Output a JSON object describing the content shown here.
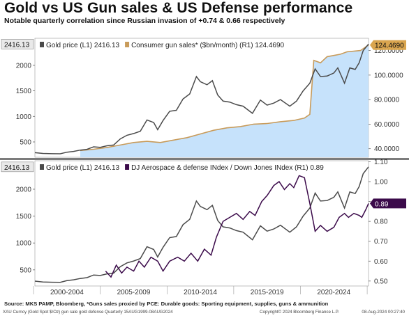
{
  "header": {
    "title": "Gold vs US Gun sales & US Defense performance",
    "subtitle": "Notable quarterly correlation since Russian invasion of +0.74 & 0.66 respectively"
  },
  "footer": {
    "source": "Source: MKS PAMP, Bloomberg, *Guns sales proxied by PCE: Durable goods: Sporting equipment, supplies, guns & ammunition",
    "left": "XAU Curncy (Gold Spot   $/Oz) gun sale gold defense  Quarterly 15AUG1999-08AUG2024",
    "middle": "Copyright© 2024 Bloomberg Finance L.P.",
    "right": "08-Aug-2024 00:27:40"
  },
  "colors": {
    "gold_line": "#4a4a4a",
    "gun_fill": "#c6e2fb",
    "gun_line": "#c89b5a",
    "defense_line": "#3b0a4a",
    "divider": "#333333"
  },
  "chart_data": [
    {
      "type": "line",
      "panel": "top",
      "x_axis": "year",
      "xlim": [
        1999.6,
        2024.6
      ],
      "y_left_ticks": [
        500,
        1000,
        1500,
        2000
      ],
      "y_left_lim": [
        200,
        2530
      ],
      "y_right_ticks": [
        "40.0000",
        "60.0000",
        "80.0000",
        "100.0000",
        "120.0000"
      ],
      "y_right_lim": [
        33,
        130
      ],
      "legend": "top-left",
      "grid": false,
      "left_last_label": "2416.13",
      "right_last_label": "124.4690",
      "series": [
        {
          "name": "Gold price (L1) 2416.13",
          "axis": "left",
          "style": "line",
          "points": [
            [
              1999.6,
              290
            ],
            [
              2000.2,
              275
            ],
            [
              2000.9,
              270
            ],
            [
              2001.5,
              268
            ],
            [
              2002.0,
              300
            ],
            [
              2002.5,
              315
            ],
            [
              2003.0,
              340
            ],
            [
              2003.5,
              355
            ],
            [
              2004.0,
              405
            ],
            [
              2004.5,
              395
            ],
            [
              2005.0,
              425
            ],
            [
              2005.5,
              440
            ],
            [
              2006.0,
              560
            ],
            [
              2006.5,
              630
            ],
            [
              2007.0,
              665
            ],
            [
              2007.5,
              710
            ],
            [
              2008.0,
              930
            ],
            [
              2008.5,
              880
            ],
            [
              2008.8,
              740
            ],
            [
              2009.2,
              920
            ],
            [
              2009.7,
              1100
            ],
            [
              2010.2,
              1120
            ],
            [
              2010.7,
              1340
            ],
            [
              2011.2,
              1440
            ],
            [
              2011.7,
              1780
            ],
            [
              2012.0,
              1680
            ],
            [
              2012.5,
              1620
            ],
            [
              2012.9,
              1700
            ],
            [
              2013.3,
              1420
            ],
            [
              2013.7,
              1300
            ],
            [
              2014.2,
              1280
            ],
            [
              2014.7,
              1230
            ],
            [
              2015.2,
              1200
            ],
            [
              2015.9,
              1060
            ],
            [
              2016.5,
              1320
            ],
            [
              2017.0,
              1220
            ],
            [
              2017.5,
              1260
            ],
            [
              2018.0,
              1330
            ],
            [
              2018.7,
              1200
            ],
            [
              2019.2,
              1300
            ],
            [
              2019.7,
              1500
            ],
            [
              2020.2,
              1650
            ],
            [
              2020.6,
              1930
            ],
            [
              2021.0,
              1780
            ],
            [
              2021.5,
              1790
            ],
            [
              2022.0,
              1850
            ],
            [
              2022.3,
              1950
            ],
            [
              2022.8,
              1650
            ],
            [
              2023.2,
              1950
            ],
            [
              2023.6,
              1920
            ],
            [
              2023.9,
              2050
            ],
            [
              2024.2,
              2290
            ],
            [
              2024.6,
              2416
            ]
          ]
        },
        {
          "name": "Consumer gun sales* ($bn/month) (R1) 124.4690",
          "axis": "right",
          "style": "area",
          "points": [
            [
              2003.0,
              38.5
            ],
            [
              2004.0,
              39.5
            ],
            [
              2005.0,
              41
            ],
            [
              2006.0,
              43
            ],
            [
              2007.0,
              45
            ],
            [
              2008.0,
              46
            ],
            [
              2009.0,
              45
            ],
            [
              2010.0,
              47
            ],
            [
              2011.0,
              49
            ],
            [
              2012.0,
              52
            ],
            [
              2013.0,
              55
            ],
            [
              2014.0,
              57
            ],
            [
              2015.0,
              58
            ],
            [
              2016.0,
              60
            ],
            [
              2017.0,
              60.5
            ],
            [
              2018.0,
              62
            ],
            [
              2019.0,
              63
            ],
            [
              2019.8,
              65
            ],
            [
              2020.2,
              68
            ],
            [
              2020.5,
              112
            ],
            [
              2021.0,
              110
            ],
            [
              2021.5,
              115
            ],
            [
              2022.0,
              116
            ],
            [
              2022.5,
              117
            ],
            [
              2023.0,
              119
            ],
            [
              2023.5,
              119.5
            ],
            [
              2024.0,
              120
            ],
            [
              2024.6,
              124.5
            ]
          ]
        }
      ]
    },
    {
      "type": "line",
      "panel": "bottom",
      "x_axis": "year",
      "xlim": [
        1999.6,
        2024.6
      ],
      "x_tick_labels": [
        "2000-2004",
        "2005-2009",
        "2010-2014",
        "2015-2019",
        "2020-2024"
      ],
      "y_left_ticks": [
        500,
        1000,
        1500,
        2000
      ],
      "y_left_lim": [
        200,
        2530
      ],
      "y_right_ticks": [
        "0.50",
        "0.60",
        "0.70",
        "0.80",
        "0.90",
        "1.00",
        "1.10"
      ],
      "y_right_lim": [
        0.475,
        1.105
      ],
      "legend": "top-left",
      "grid": false,
      "left_last_label": "2416.13",
      "right_last_label": "0.89",
      "series": [
        {
          "name": "Gold price (L1) 2416.13",
          "axis": "left",
          "style": "line",
          "points": [
            [
              1999.6,
              290
            ],
            [
              2000.2,
              275
            ],
            [
              2000.9,
              270
            ],
            [
              2001.5,
              268
            ],
            [
              2002.0,
              300
            ],
            [
              2002.5,
              315
            ],
            [
              2003.0,
              340
            ],
            [
              2003.5,
              355
            ],
            [
              2004.0,
              405
            ],
            [
              2004.5,
              395
            ],
            [
              2005.0,
              425
            ],
            [
              2005.5,
              440
            ],
            [
              2006.0,
              560
            ],
            [
              2006.5,
              630
            ],
            [
              2007.0,
              665
            ],
            [
              2007.5,
              710
            ],
            [
              2008.0,
              930
            ],
            [
              2008.5,
              880
            ],
            [
              2008.8,
              740
            ],
            [
              2009.2,
              920
            ],
            [
              2009.7,
              1100
            ],
            [
              2010.2,
              1120
            ],
            [
              2010.7,
              1340
            ],
            [
              2011.2,
              1440
            ],
            [
              2011.7,
              1780
            ],
            [
              2012.0,
              1680
            ],
            [
              2012.5,
              1620
            ],
            [
              2012.9,
              1700
            ],
            [
              2013.3,
              1420
            ],
            [
              2013.7,
              1300
            ],
            [
              2014.2,
              1280
            ],
            [
              2014.7,
              1230
            ],
            [
              2015.2,
              1200
            ],
            [
              2015.9,
              1060
            ],
            [
              2016.5,
              1320
            ],
            [
              2017.0,
              1220
            ],
            [
              2017.5,
              1260
            ],
            [
              2018.0,
              1330
            ],
            [
              2018.7,
              1200
            ],
            [
              2019.2,
              1300
            ],
            [
              2019.7,
              1500
            ],
            [
              2020.2,
              1650
            ],
            [
              2020.6,
              1930
            ],
            [
              2021.0,
              1780
            ],
            [
              2021.5,
              1790
            ],
            [
              2022.0,
              1850
            ],
            [
              2022.3,
              1950
            ],
            [
              2022.8,
              1650
            ],
            [
              2023.2,
              1950
            ],
            [
              2023.6,
              1920
            ],
            [
              2023.9,
              2050
            ],
            [
              2024.2,
              2290
            ],
            [
              2024.6,
              2416
            ]
          ]
        },
        {
          "name": "DJ Aerospace & defense INdex / Down Jones INdex  (R1) 0.89",
          "axis": "right",
          "style": "line",
          "points": [
            [
              2004.9,
              0.55
            ],
            [
              2005.3,
              0.52
            ],
            [
              2005.7,
              0.58
            ],
            [
              2006.1,
              0.54
            ],
            [
              2006.5,
              0.57
            ],
            [
              2007.0,
              0.55
            ],
            [
              2007.4,
              0.6
            ],
            [
              2007.8,
              0.57
            ],
            [
              2008.3,
              0.62
            ],
            [
              2008.8,
              0.6
            ],
            [
              2009.2,
              0.55
            ],
            [
              2009.7,
              0.6
            ],
            [
              2010.3,
              0.62
            ],
            [
              2010.8,
              0.6
            ],
            [
              2011.3,
              0.64
            ],
            [
              2011.8,
              0.6
            ],
            [
              2012.3,
              0.66
            ],
            [
              2012.8,
              0.63
            ],
            [
              2013.2,
              0.72
            ],
            [
              2013.7,
              0.8
            ],
            [
              2014.2,
              0.82
            ],
            [
              2014.7,
              0.84
            ],
            [
              2015.2,
              0.81
            ],
            [
              2015.7,
              0.85
            ],
            [
              2016.1,
              0.83
            ],
            [
              2016.6,
              0.9
            ],
            [
              2017.0,
              0.93
            ],
            [
              2017.5,
              0.98
            ],
            [
              2017.9,
              1.0
            ],
            [
              2018.3,
              0.96
            ],
            [
              2018.7,
              0.99
            ],
            [
              2019.0,
              0.97
            ],
            [
              2019.4,
              1.03
            ],
            [
              2019.8,
              1.02
            ],
            [
              2020.2,
              0.89
            ],
            [
              2020.6,
              0.75
            ],
            [
              2021.0,
              0.78
            ],
            [
              2021.5,
              0.75
            ],
            [
              2022.0,
              0.77
            ],
            [
              2022.4,
              0.82
            ],
            [
              2022.8,
              0.84
            ],
            [
              2023.1,
              0.82
            ],
            [
              2023.5,
              0.84
            ],
            [
              2023.9,
              0.83
            ],
            [
              2024.1,
              0.82
            ],
            [
              2024.4,
              0.86
            ],
            [
              2024.6,
              0.89
            ]
          ]
        }
      ]
    }
  ]
}
